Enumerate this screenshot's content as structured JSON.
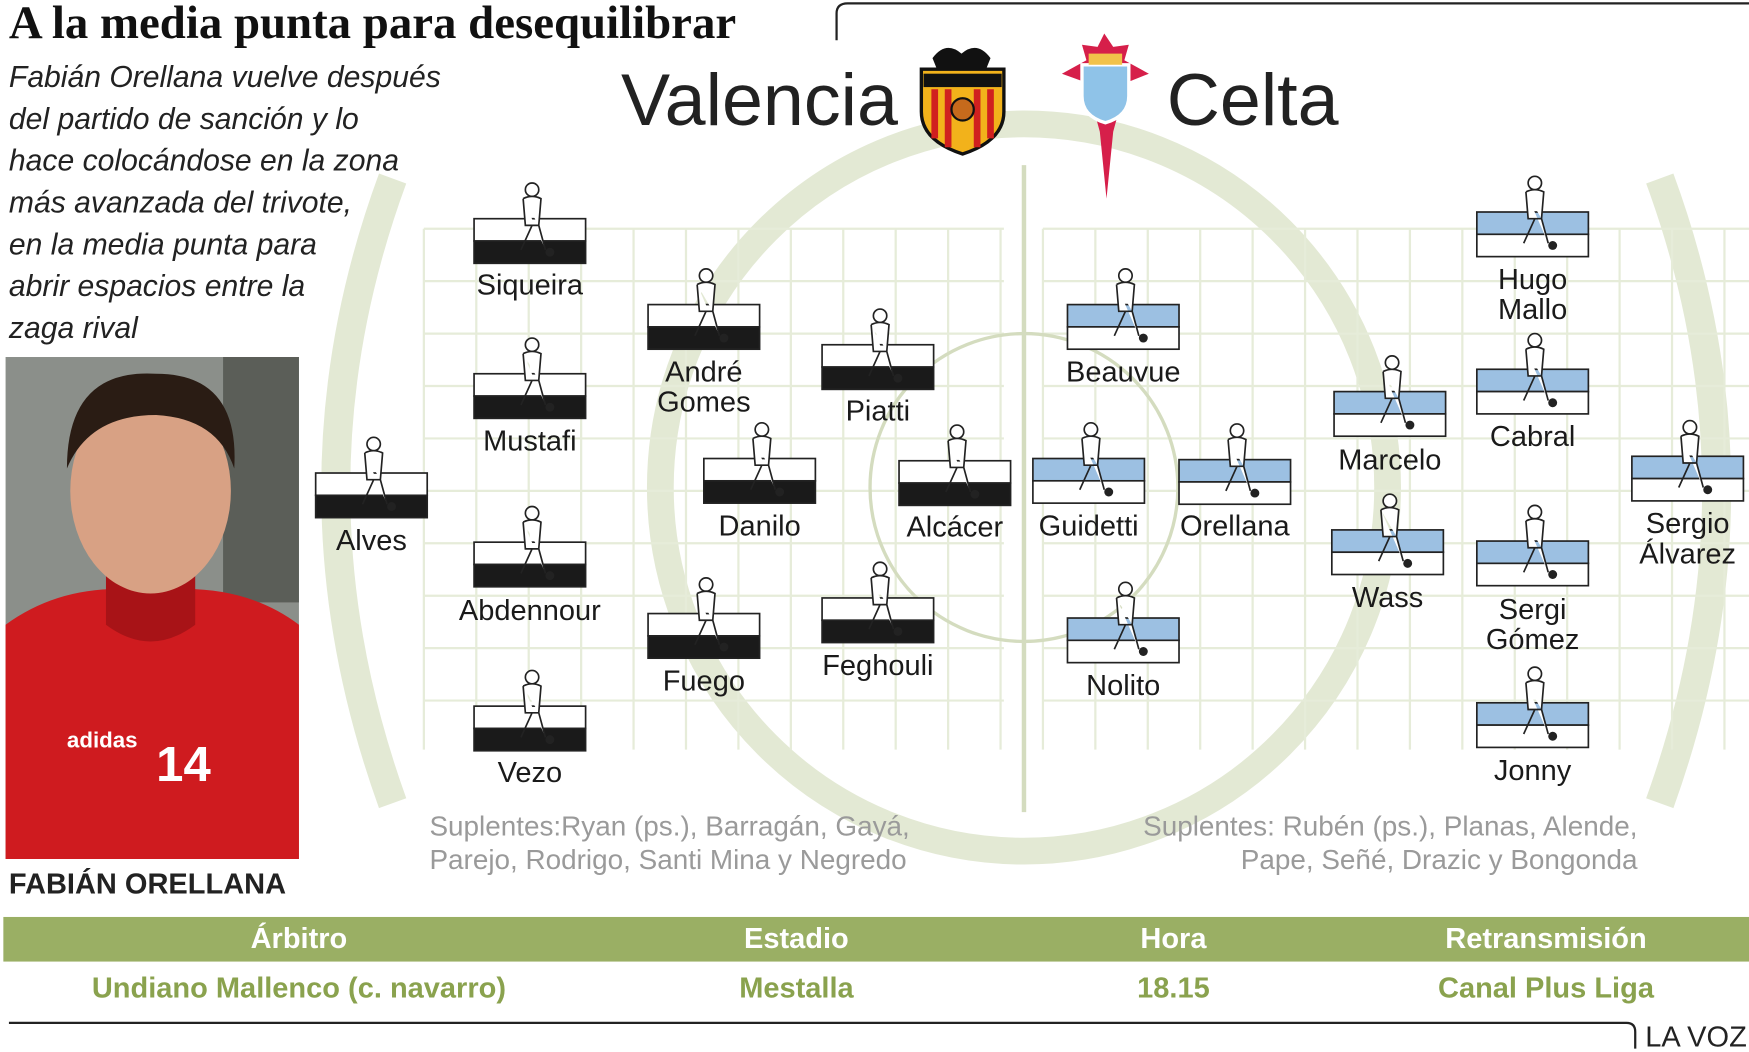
{
  "header": {
    "title": "A la media punta para desequilibrar",
    "intro": [
      "Fabián Orellana vuelve después",
      "del partido de sanción y lo",
      "hace colocándose en la zona",
      "más avanzada del trivote,",
      "en la media punta para",
      "abrir espacios entre la",
      "zaga rival"
    ]
  },
  "photo_caption": "FABIÁN ORELLANA",
  "teams": [
    {
      "name": "Valencia",
      "players": [
        "Alves",
        "Siqueira",
        "Mustafi",
        "Abdennour",
        "Vezo",
        "André Gomes",
        "Fuego",
        "Danilo",
        "Piatti",
        "Feghouli",
        "Alcácer"
      ],
      "substitutes": [
        "Suplentes:Ryan (ps.), Barragán, Gayá,",
        "Parejo, Rodrigo, Santi Mina y Negredo"
      ]
    },
    {
      "name": "Celta",
      "players": [
        "Beauvue",
        "Guidetti",
        "Orellana",
        "Nolito",
        "Marcelo",
        "Wass",
        "Hugo Mallo",
        "Cabral",
        "Sergi Gómez",
        "Jonny",
        "Sergio Álvarez"
      ],
      "substitutes": [
        "Suplentes: Rubén (ps.), Planas, Alende,",
        "Pape, Señé, Drazic y Bongonda"
      ]
    }
  ],
  "match_info": {
    "headers": [
      "Árbitro",
      "Estadio",
      "Hora",
      "Retransmisión"
    ],
    "values": [
      "Undiano Mallenco (c. navarro)",
      "Mestalla",
      "18.15",
      "Canal Plus Liga"
    ]
  },
  "footer": "LA VOZ"
}
